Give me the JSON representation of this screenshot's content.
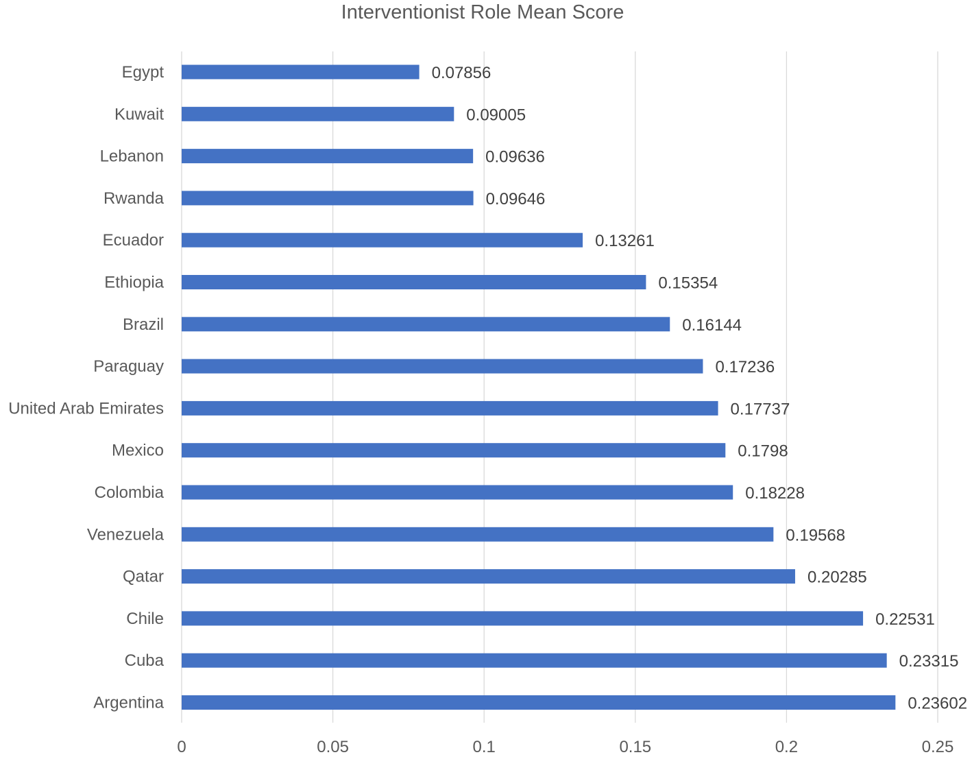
{
  "chart_data": {
    "type": "bar",
    "orientation": "horizontal",
    "title": "Interventionist Role Mean Score",
    "xlabel": "",
    "ylabel": "",
    "categories": [
      "Egypt",
      "Kuwait",
      "Lebanon",
      "Rwanda",
      "Ecuador",
      "Ethiopia",
      "Brazil",
      "Paraguay",
      "United Arab Emirates",
      "Mexico",
      "Colombia",
      "Venezuela",
      "Qatar",
      "Chile",
      "Cuba",
      "Argentina"
    ],
    "values": [
      0.07856,
      0.09005,
      0.09636,
      0.09646,
      0.13261,
      0.15354,
      0.16144,
      0.17236,
      0.17737,
      0.1798,
      0.18228,
      0.19568,
      0.20285,
      0.22531,
      0.23315,
      0.23602
    ],
    "data_labels": [
      "0.07856",
      "0.09005",
      "0.09636",
      "0.09646",
      "0.13261",
      "0.15354",
      "0.16144",
      "0.17236",
      "0.17737",
      "0.1798",
      "0.18228",
      "0.19568",
      "0.20285",
      "0.22531",
      "0.23315",
      "0.23602"
    ],
    "xlim": [
      0,
      0.25
    ],
    "x_ticks": [
      0,
      0.05,
      0.1,
      0.15,
      0.2,
      0.25
    ],
    "x_tick_labels": [
      "0",
      "0.05",
      "0.1",
      "0.15",
      "0.2",
      "0.25"
    ],
    "grid": "vertical",
    "legend": "none",
    "bar_color": "#4472C4",
    "gridline_color": "#D9D9D9",
    "text_color": "#595959"
  }
}
